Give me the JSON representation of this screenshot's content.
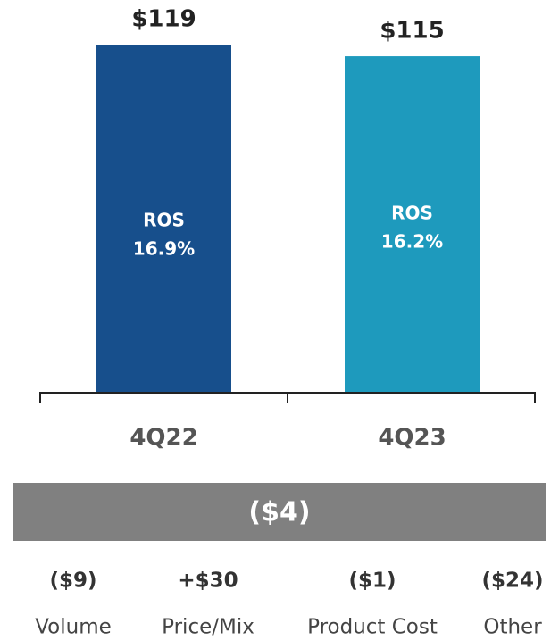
{
  "chart_data": {
    "type": "bar",
    "categories": [
      "4Q22",
      "4Q23"
    ],
    "values": [
      119,
      115
    ],
    "value_labels": [
      "$119",
      "$115"
    ],
    "colors": [
      "#174f8c",
      "#1e9abd"
    ],
    "bar_annotations": [
      {
        "title": "ROS",
        "text": "16.9%"
      },
      {
        "title": "ROS",
        "text": "16.2%"
      }
    ]
  },
  "bridge": {
    "total_label": "($4)",
    "items": [
      {
        "value_label": "($9)",
        "name": "Volume"
      },
      {
        "value_label": "+$30",
        "name": "Price/Mix"
      },
      {
        "value_label": "($1)",
        "name": "Product Cost"
      },
      {
        "value_label": "($24)",
        "name": "Other"
      }
    ]
  }
}
